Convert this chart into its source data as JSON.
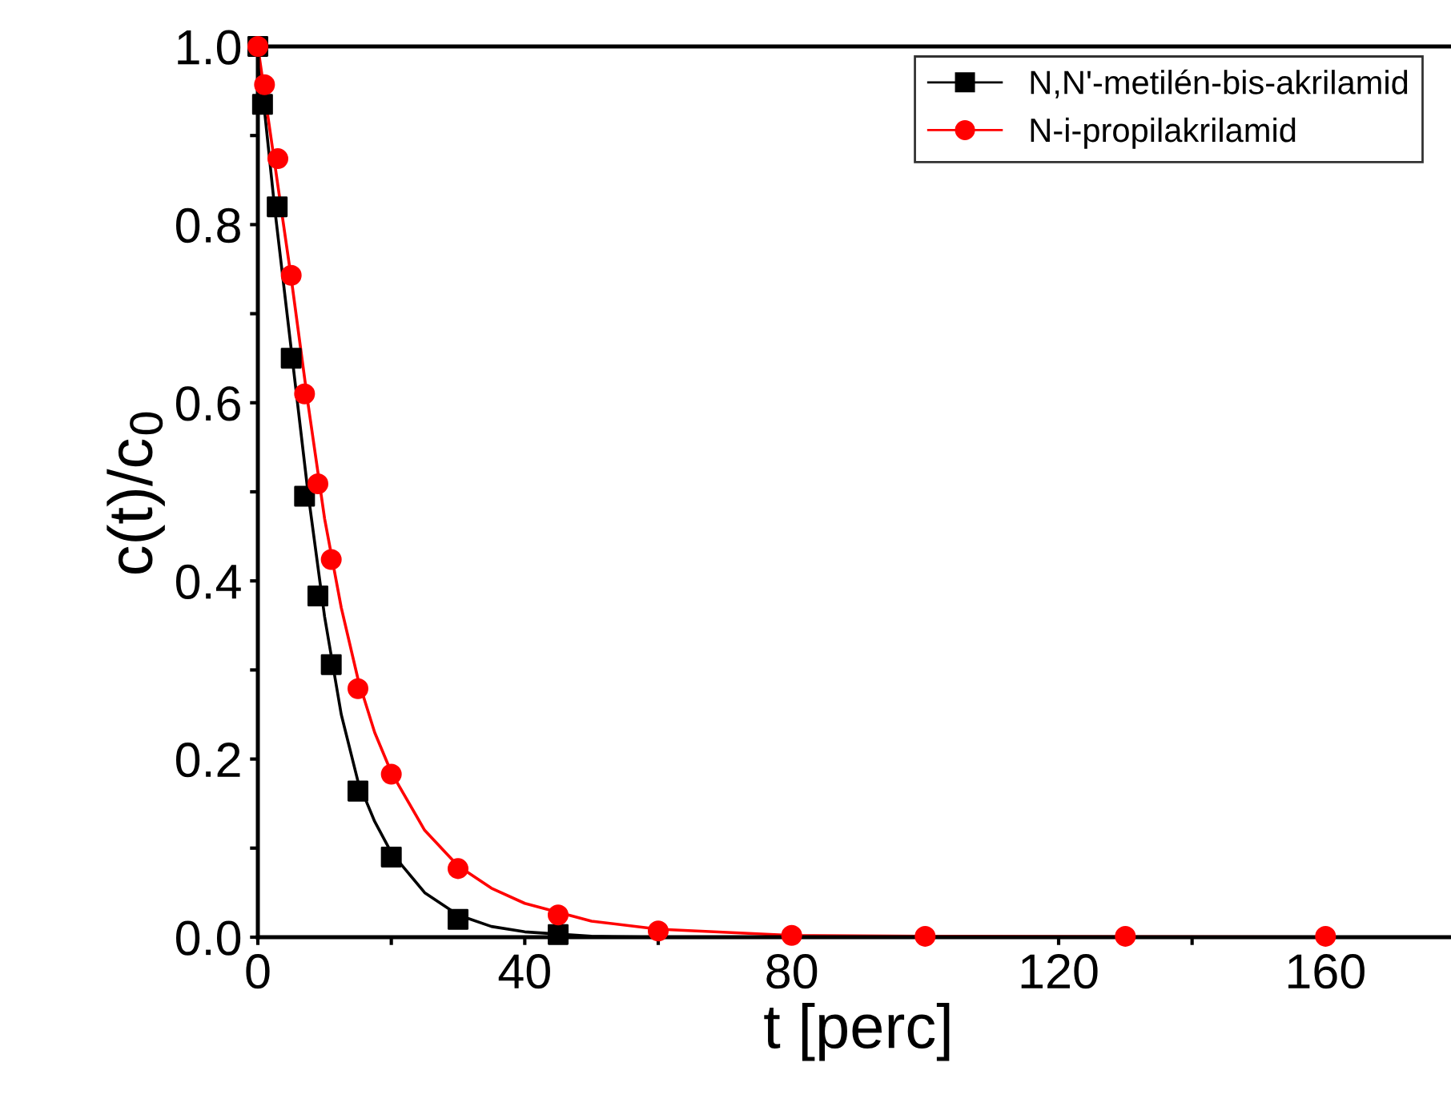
{
  "chart_data": {
    "type": "line",
    "xlabel": "t [perc]",
    "ylabel": "c(t)/c$_{0}$",
    "xlim": [
      0,
      180
    ],
    "ylim": [
      0,
      1.0
    ],
    "xticks": [
      0,
      {
        "value": 20,
        "label": null
      },
      40,
      {
        "value": 60,
        "label": null
      },
      80,
      {
        "value": 100,
        "label": null
      },
      120,
      {
        "value": 140,
        "label": null
      },
      160
    ],
    "yticks": [
      {
        "value": 0,
        "label": "0.0"
      },
      {
        "value": 0.1,
        "label": null
      },
      {
        "value": 0.2,
        "label": "0.2"
      },
      {
        "value": 0.3,
        "label": null
      },
      {
        "value": 0.4,
        "label": "0.4"
      },
      {
        "value": 0.5,
        "label": null
      },
      {
        "value": 0.6,
        "label": "0.6"
      },
      {
        "value": 0.7,
        "label": null
      },
      {
        "value": 0.8,
        "label": "0.8"
      },
      {
        "value": 0.9,
        "label": null
      },
      {
        "value": 1.0,
        "label": "1.0"
      }
    ],
    "legend": "top right",
    "grid": false,
    "series": [
      {
        "type": "scatter",
        "name": "N,N'-metilén-bis-akrilamid",
        "color": "#000000",
        "marker": "square",
        "x": [
          0,
          0.7,
          2.9,
          5,
          7,
          9,
          11,
          15,
          20,
          30,
          45
        ],
        "values": [
          1.0,
          0.935,
          0.82,
          0.65,
          0.495,
          0.383,
          0.306,
          0.164,
          0.09,
          0.02,
          0.003
        ]
      },
      {
        "type": "scatter",
        "name": "N-i-propilakrilamid",
        "color": "#ff0000",
        "marker": "circle",
        "x": [
          0,
          1,
          3,
          5,
          7,
          9,
          11,
          15,
          20,
          30,
          45,
          60,
          80,
          100,
          130,
          160
        ],
        "values": [
          1.0,
          0.957,
          0.874,
          0.743,
          0.61,
          0.509,
          0.424,
          0.279,
          0.183,
          0.077,
          0.025,
          0.007,
          0.002,
          0.001,
          0.001,
          0.001
        ]
      },
      {
        "color": "#000000",
        "x": [
          0,
          2.5,
          5,
          7.5,
          10,
          12.5,
          15,
          17.5,
          20,
          25,
          30,
          35,
          40,
          50,
          60,
          175
        ],
        "values": [
          1.0,
          0.82,
          0.66,
          0.5,
          0.36,
          0.25,
          0.175,
          0.13,
          0.095,
          0.05,
          0.025,
          0.012,
          0.006,
          0.001,
          0,
          0
        ]
      },
      {
        "color": "#ff0000",
        "x": [
          0,
          2.5,
          5,
          7.5,
          10,
          12.5,
          15,
          17.5,
          20,
          25,
          30,
          35,
          40,
          50,
          60,
          80,
          100,
          175
        ],
        "values": [
          1.0,
          0.87,
          0.74,
          0.6,
          0.47,
          0.37,
          0.29,
          0.23,
          0.185,
          0.12,
          0.08,
          0.055,
          0.038,
          0.018,
          0.009,
          0.002,
          0.001,
          0
        ]
      }
    ]
  }
}
